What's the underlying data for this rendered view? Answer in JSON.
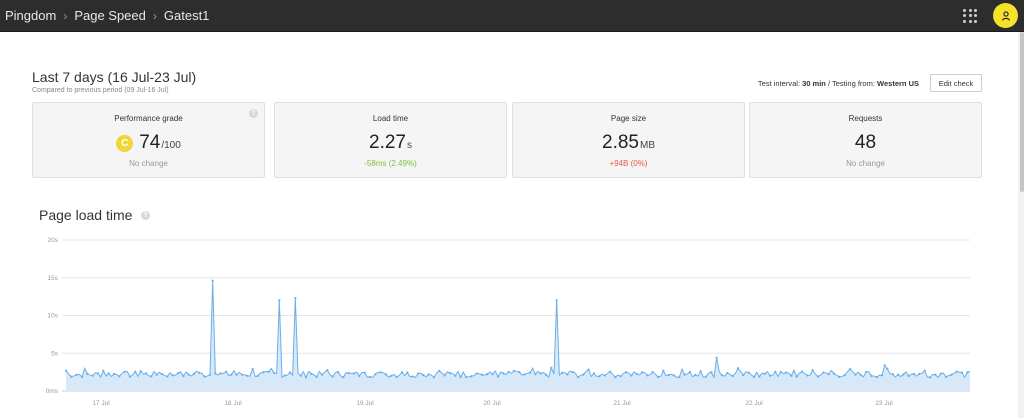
{
  "breadcrumb": {
    "items": [
      "Pingdom",
      "Page Speed",
      "Gatest1"
    ],
    "separator": "›"
  },
  "header": {
    "period_title": "Last 7 days (16 Jul-23 Jul)",
    "period_compare": "Compared to previous period (09 Jul-16 Jul)",
    "test_interval_label": "Test interval:",
    "test_interval_value": "30 min",
    "testing_from_label": " / Testing from:",
    "testing_from_value": "Western US",
    "edit_check_label": "Edit check"
  },
  "cards": {
    "performance": {
      "title": "Performance grade",
      "grade_letter": "C",
      "value": "74",
      "unit": "/100",
      "note": "No change"
    },
    "load_time": {
      "title": "Load time",
      "value": "2.27",
      "unit": "s",
      "note": "-58ms (2.49%)"
    },
    "page_size": {
      "title": "Page size",
      "value": "2.85",
      "unit": "MB",
      "note": "+94B (0%)"
    },
    "requests": {
      "title": "Requests",
      "value": "48",
      "note": "No change"
    }
  },
  "colors": {
    "topbar": "#2d2d2d",
    "avatar": "#f4e22b",
    "grade_badge": "#f0d53a",
    "good": "#7cbf3a",
    "bad": "#e5584a",
    "line": "#6aaee8",
    "area": "#d7e9f8"
  },
  "icons": {
    "apps": "apps-grid-icon",
    "avatar": "user-icon",
    "info": "info-icon"
  },
  "chart_title": "Page load time",
  "chart_data": {
    "type": "area",
    "ylabel_unit": "s",
    "y_ticks": [
      "0ms",
      "5s",
      "10s",
      "15s",
      "20s"
    ],
    "ylim": [
      0,
      20
    ],
    "x_ticks": [
      "17 Jul",
      "18 Jul",
      "19 Jul",
      "20 Jul",
      "21 Jul",
      "22 Jul",
      "23 Jul"
    ],
    "grid": "horizontal",
    "spikes": [
      {
        "near": "17 Jul 20:00",
        "value": 14.6
      },
      {
        "near": "18 Jul 09:00",
        "value": 12.0
      },
      {
        "near": "18 Jul 12:00",
        "value": 12.3
      },
      {
        "near": "20 Jul 14:00",
        "value": 12.0
      },
      {
        "near": "21 Jul 21:00",
        "value": 4.4
      },
      {
        "near": "23 Jul 00:30",
        "value": 3.4
      }
    ],
    "baseline_approx": 2.2
  }
}
